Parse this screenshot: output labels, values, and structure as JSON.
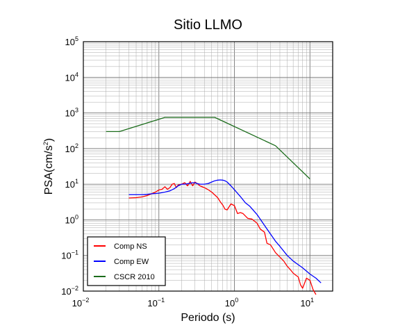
{
  "chart_data": {
    "type": "line",
    "title": "Sitio LLMO",
    "xlabel": "Periodo (s)",
    "ylabel": {
      "base": "PSA(cm/s",
      "sup": "2",
      "tail": ")"
    },
    "x_scale": "log",
    "y_scale": "log",
    "xlim": [
      0.01,
      20
    ],
    "ylim": [
      0.01,
      100000
    ],
    "grid": true,
    "legend_position": "bottom-left",
    "x_ticks": [
      {
        "base": "10",
        "exp": "−2"
      },
      {
        "base": "10",
        "exp": "−1"
      },
      {
        "base": "10",
        "exp": "0"
      },
      {
        "base": "10",
        "exp": "1"
      }
    ],
    "y_ticks": [
      {
        "base": "10",
        "exp": "−2"
      },
      {
        "base": "10",
        "exp": "−1"
      },
      {
        "base": "10",
        "exp": "0"
      },
      {
        "base": "10",
        "exp": "1"
      },
      {
        "base": "10",
        "exp": "2"
      },
      {
        "base": "10",
        "exp": "3"
      },
      {
        "base": "10",
        "exp": "4"
      },
      {
        "base": "10",
        "exp": "5"
      }
    ],
    "series": [
      {
        "name": "Comp NS",
        "color": "#ff0000",
        "x": [
          0.04,
          0.05,
          0.06,
          0.07,
          0.08,
          0.09,
          0.1,
          0.11,
          0.12,
          0.13,
          0.14,
          0.15,
          0.16,
          0.17,
          0.18,
          0.2,
          0.22,
          0.24,
          0.26,
          0.28,
          0.3,
          0.32,
          0.35,
          0.4,
          0.45,
          0.5,
          0.55,
          0.6,
          0.65,
          0.7,
          0.75,
          0.8,
          0.9,
          1.0,
          1.1,
          1.2,
          1.3,
          1.5,
          1.7,
          2.0,
          2.2,
          2.5,
          2.7,
          3.0,
          3.5,
          4.0,
          4.5,
          5.0,
          5.5,
          6.0,
          6.5,
          7.0,
          7.5,
          8.0,
          9.0,
          10.0,
          11.0,
          12.0
        ],
        "y": [
          4.1,
          4.2,
          4.4,
          4.8,
          5.4,
          6.0,
          6.9,
          7.2,
          8.5,
          7.2,
          8.0,
          10.0,
          10.5,
          8.0,
          9.5,
          10.0,
          11.0,
          9.0,
          12.0,
          9.0,
          11.5,
          10.5,
          9.0,
          8.0,
          7.0,
          6.0,
          5.0,
          4.2,
          3.2,
          2.6,
          2.0,
          1.9,
          2.8,
          2.5,
          1.5,
          1.6,
          1.5,
          1.1,
          1.05,
          0.8,
          0.55,
          0.45,
          0.22,
          0.2,
          0.12,
          0.09,
          0.07,
          0.05,
          0.04,
          0.032,
          0.028,
          0.025,
          0.015,
          0.012,
          0.023,
          0.02,
          0.011,
          0.008
        ]
      },
      {
        "name": "Comp EW",
        "color": "#0000ff",
        "x": [
          0.04,
          0.05,
          0.06,
          0.07,
          0.08,
          0.09,
          0.1,
          0.12,
          0.14,
          0.16,
          0.18,
          0.2,
          0.22,
          0.25,
          0.28,
          0.3,
          0.32,
          0.35,
          0.4,
          0.45,
          0.5,
          0.55,
          0.6,
          0.65,
          0.7,
          0.75,
          0.8,
          0.9,
          1.0,
          1.2,
          1.4,
          1.6,
          1.8,
          2.0,
          2.5,
          3.0,
          3.5,
          4.0,
          5.0,
          6.0,
          7.0,
          8.0,
          10.0,
          12.0,
          14.0
        ],
        "y": [
          5.1,
          5.1,
          5.1,
          5.2,
          5.4,
          5.5,
          5.6,
          6.0,
          6.5,
          7.5,
          9.0,
          10.0,
          10.0,
          10.5,
          11.0,
          11.0,
          10.5,
          10.0,
          10.0,
          10.5,
          11.5,
          12.5,
          13.0,
          13.2,
          13.0,
          12.5,
          11.5,
          9.0,
          7.0,
          4.5,
          3.0,
          2.4,
          1.8,
          1.4,
          0.7,
          0.4,
          0.25,
          0.18,
          0.1,
          0.07,
          0.055,
          0.045,
          0.03,
          0.023,
          0.017
        ]
      },
      {
        "name": "CSCR 2010",
        "color": "#1a6b1a",
        "x": [
          0.02,
          0.03,
          0.12,
          0.55,
          3.5,
          10.0
        ],
        "y": [
          300,
          300,
          750,
          750,
          120,
          14
        ]
      }
    ]
  }
}
